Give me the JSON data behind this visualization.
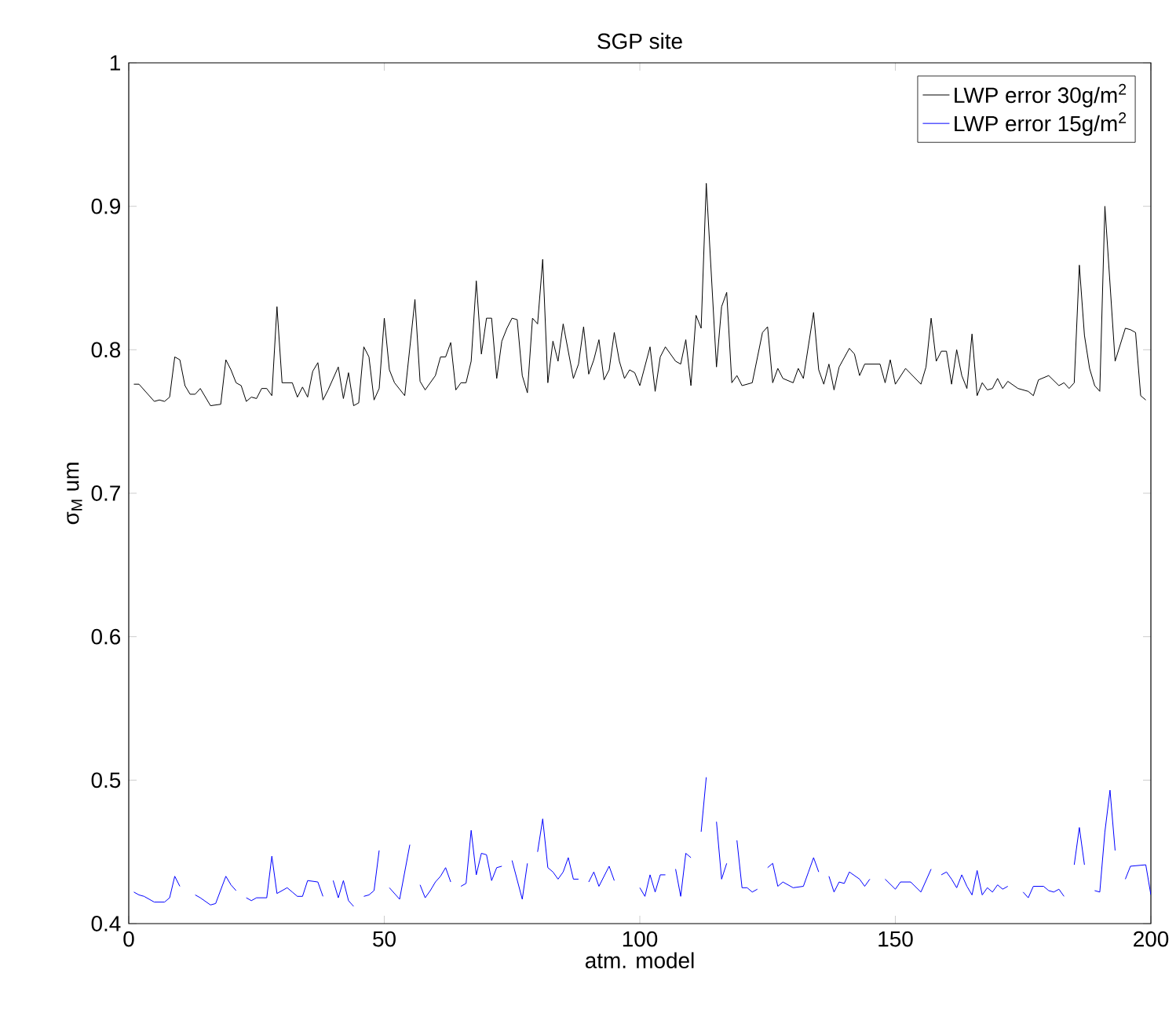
{
  "chart_data": {
    "type": "line",
    "title": "SGP site",
    "xlabel": "atm. model",
    "ylabel": "σ$_{M}$ um",
    "xlim": [
      0,
      200
    ],
    "ylim": [
      0.4,
      1
    ],
    "xticks": [
      0,
      50,
      100,
      150,
      200
    ],
    "yticks": [
      0.4,
      0.5,
      0.6,
      0.7,
      0.8,
      0.9,
      1
    ],
    "legend": "top right",
    "grid": false,
    "marker": "none",
    "line_style": "solid",
    "series": [
      {
        "name": "LWP error 30g/m$^{2}$",
        "color": "#000000",
        "x": [
          1,
          2,
          5,
          6,
          7,
          8,
          9,
          10,
          11,
          12,
          13,
          14,
          16,
          18,
          19,
          20,
          21,
          22,
          23,
          24,
          25,
          26,
          27,
          28,
          29,
          30,
          31,
          32,
          33,
          34,
          35,
          36,
          37,
          38,
          39,
          41,
          42,
          43,
          44,
          45,
          46,
          47,
          48,
          49,
          50,
          51,
          52,
          54,
          56,
          57,
          58,
          60,
          61,
          62,
          63,
          64,
          65,
          66,
          67,
          68,
          69,
          70,
          71,
          72,
          73,
          74,
          75,
          76,
          77,
          78,
          79,
          80,
          81,
          82,
          83,
          84,
          85,
          87,
          88,
          89,
          90,
          91,
          92,
          93,
          94,
          95,
          96,
          97,
          98,
          99,
          100,
          102,
          103,
          104,
          105,
          107,
          108,
          109,
          110,
          111,
          112,
          113,
          115,
          116,
          117,
          118,
          119,
          120,
          122,
          124,
          125,
          126,
          127,
          128,
          130,
          131,
          132,
          134,
          135,
          136,
          137,
          138,
          139,
          141,
          142,
          143,
          144,
          147,
          148,
          149,
          150,
          152,
          155,
          156,
          157,
          158,
          159,
          160,
          161,
          162,
          163,
          164,
          165,
          166,
          167,
          168,
          169,
          170,
          171,
          172,
          174,
          176,
          177,
          178,
          180,
          182,
          183,
          184,
          185,
          186,
          187,
          188,
          189,
          190,
          191,
          193,
          195,
          196,
          197,
          198,
          199
        ],
        "values": [
          0.776,
          0.776,
          0.764,
          0.765,
          0.764,
          0.767,
          0.795,
          0.793,
          0.775,
          0.769,
          0.769,
          0.773,
          0.761,
          0.762,
          0.793,
          0.786,
          0.777,
          0.775,
          0.764,
          0.767,
          0.766,
          0.773,
          0.773,
          0.768,
          0.83,
          0.777,
          0.777,
          0.777,
          0.767,
          0.774,
          0.767,
          0.785,
          0.791,
          0.765,
          0.772,
          0.788,
          0.766,
          0.784,
          0.761,
          0.763,
          0.802,
          0.795,
          0.765,
          0.773,
          0.822,
          0.786,
          0.777,
          0.768,
          0.835,
          0.778,
          0.772,
          0.782,
          0.795,
          0.795,
          0.805,
          0.772,
          0.777,
          0.777,
          0.792,
          0.848,
          0.797,
          0.822,
          0.822,
          0.78,
          0.806,
          0.815,
          0.822,
          0.821,
          0.782,
          0.77,
          0.822,
          0.818,
          0.863,
          0.777,
          0.806,
          0.792,
          0.818,
          0.78,
          0.79,
          0.816,
          0.783,
          0.793,
          0.807,
          0.779,
          0.786,
          0.812,
          0.792,
          0.78,
          0.786,
          0.784,
          0.775,
          0.802,
          0.771,
          0.795,
          0.802,
          0.792,
          0.79,
          0.807,
          0.775,
          0.824,
          0.815,
          0.916,
          0.788,
          0.83,
          0.84,
          0.777,
          0.782,
          0.775,
          0.777,
          0.812,
          0.816,
          0.777,
          0.787,
          0.78,
          0.777,
          0.787,
          0.78,
          0.826,
          0.786,
          0.776,
          0.79,
          0.772,
          0.788,
          0.801,
          0.797,
          0.782,
          0.79,
          0.79,
          0.777,
          0.793,
          0.776,
          0.787,
          0.776,
          0.788,
          0.822,
          0.792,
          0.799,
          0.799,
          0.776,
          0.8,
          0.782,
          0.773,
          0.811,
          0.768,
          0.777,
          0.772,
          0.773,
          0.78,
          0.773,
          0.778,
          0.773,
          0.771,
          0.768,
          0.779,
          0.782,
          0.775,
          0.777,
          0.773,
          0.777,
          0.859,
          0.81,
          0.787,
          0.775,
          0.771,
          0.9,
          0.792,
          0.815,
          0.814,
          0.812,
          0.768,
          0.765
        ]
      },
      {
        "name": "LWP error 15g/m$^{2}$",
        "color": "#0000ff",
        "x": [
          1,
          2,
          3,
          5,
          7,
          8,
          9,
          10,
          11,
          13,
          14,
          16,
          17,
          19,
          20,
          21,
          22,
          23,
          24,
          25,
          27,
          28,
          29,
          31,
          32,
          33,
          34,
          35,
          37,
          38,
          39,
          40,
          41,
          42,
          43,
          44,
          45,
          46,
          47,
          48,
          49,
          50,
          51,
          53,
          55,
          56,
          57,
          58,
          59,
          60,
          61,
          62,
          63,
          64,
          65,
          66,
          67,
          68,
          69,
          70,
          71,
          72,
          73,
          74,
          75,
          77,
          78,
          79,
          80,
          81,
          82,
          83,
          84,
          85,
          86,
          87,
          88,
          89,
          90,
          91,
          92,
          94,
          95,
          96,
          100,
          101,
          102,
          103,
          104,
          105,
          106,
          107,
          108,
          109,
          110,
          111,
          112,
          113,
          114,
          115,
          116,
          117,
          118,
          119,
          120,
          121,
          122,
          123,
          124,
          125,
          126,
          127,
          128,
          130,
          132,
          133,
          134,
          135,
          136,
          137,
          138,
          139,
          140,
          141,
          143,
          144,
          145,
          146,
          148,
          150,
          151,
          153,
          155,
          157,
          158,
          159,
          160,
          161,
          162,
          163,
          164,
          165,
          166,
          167,
          168,
          169,
          170,
          171,
          172,
          173,
          175,
          176,
          177,
          179,
          180,
          181,
          182,
          183,
          184,
          185,
          186,
          187,
          188,
          189,
          190,
          191,
          192,
          193,
          194,
          195,
          196,
          199,
          200
        ],
        "values": [
          0.422,
          0.42,
          0.419,
          0.415,
          0.415,
          0.418,
          0.433,
          0.426,
          null,
          0.42,
          0.418,
          0.413,
          0.414,
          0.433,
          0.427,
          0.423,
          null,
          0.418,
          0.416,
          0.418,
          0.418,
          0.447,
          0.421,
          0.425,
          0.422,
          0.419,
          0.419,
          0.43,
          0.429,
          0.419,
          null,
          0.43,
          0.418,
          0.43,
          0.416,
          0.412,
          null,
          0.419,
          0.42,
          0.423,
          0.451,
          null,
          0.425,
          0.417,
          0.455,
          null,
          0.427,
          0.418,
          0.423,
          0.429,
          0.433,
          0.439,
          0.429,
          null,
          0.426,
          0.428,
          0.465,
          0.434,
          0.449,
          0.448,
          0.43,
          0.439,
          0.44,
          null,
          0.444,
          0.417,
          0.442,
          null,
          0.45,
          0.473,
          0.439,
          0.436,
          0.431,
          0.436,
          0.446,
          0.431,
          0.431,
          null,
          0.429,
          0.436,
          0.426,
          0.44,
          0.43,
          null,
          0.425,
          0.419,
          0.434,
          0.422,
          0.434,
          0.434,
          null,
          0.438,
          0.419,
          0.449,
          0.446,
          null,
          0.464,
          0.502,
          null,
          0.471,
          0.431,
          0.442,
          null,
          0.458,
          0.425,
          0.425,
          0.422,
          0.424,
          null,
          0.439,
          0.442,
          0.426,
          0.429,
          0.425,
          0.426,
          0.436,
          0.446,
          0.436,
          null,
          0.433,
          0.422,
          0.429,
          0.428,
          0.436,
          0.431,
          0.426,
          0.431,
          null,
          0.431,
          0.424,
          0.429,
          0.429,
          0.422,
          0.438,
          null,
          0.434,
          0.436,
          0.431,
          0.425,
          0.434,
          0.426,
          0.42,
          0.437,
          0.42,
          0.425,
          0.422,
          0.427,
          0.424,
          0.426,
          null,
          0.422,
          0.418,
          0.426,
          0.426,
          0.423,
          0.422,
          0.424,
          0.419,
          null,
          0.441,
          0.467,
          0.441,
          null,
          0.423,
          0.422,
          0.464,
          0.493,
          0.451,
          null,
          0.431,
          0.44,
          0.441,
          0.42
        ]
      }
    ]
  }
}
